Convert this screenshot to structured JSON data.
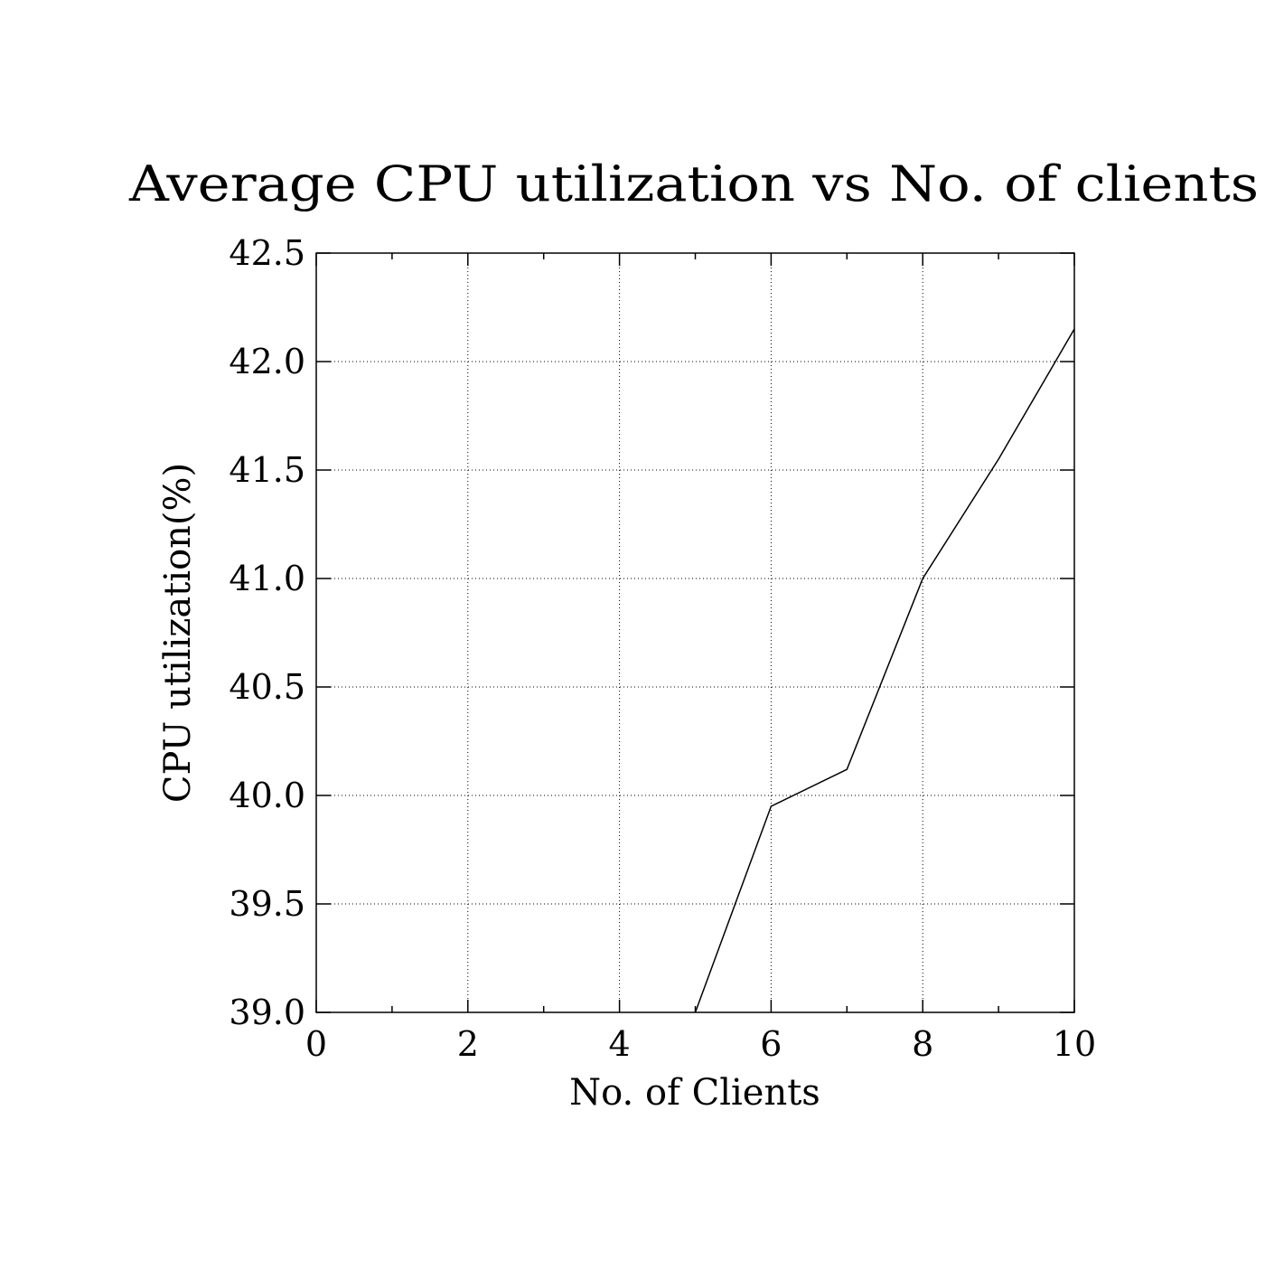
{
  "chart_data": {
    "type": "line",
    "title": "Average CPU utilization vs No. of clients",
    "xlabel": "No. of Clients",
    "ylabel": "CPU utilization(%)",
    "xlim": [
      0,
      10
    ],
    "ylim": [
      39.0,
      42.5
    ],
    "x_ticks": [
      0,
      2,
      4,
      6,
      8,
      10
    ],
    "x_tick_labels": [
      "0",
      "2",
      "4",
      "6",
      "8",
      "10"
    ],
    "x_minor_ticks": [
      1,
      3,
      5,
      7,
      9
    ],
    "y_ticks": [
      39.0,
      39.5,
      40.0,
      40.5,
      41.0,
      41.5,
      42.0,
      42.5
    ],
    "y_tick_labels": [
      "39.0",
      "39.5",
      "40.0",
      "40.5",
      "41.0",
      "41.5",
      "42.0",
      "42.5"
    ],
    "grid": true,
    "grid_style": "dotted",
    "series": [
      {
        "x": [
          5,
          6,
          7,
          8,
          9,
          10
        ],
        "y": [
          39.0,
          39.95,
          40.12,
          41.0,
          41.55,
          42.15
        ],
        "color": "#000000"
      }
    ]
  }
}
